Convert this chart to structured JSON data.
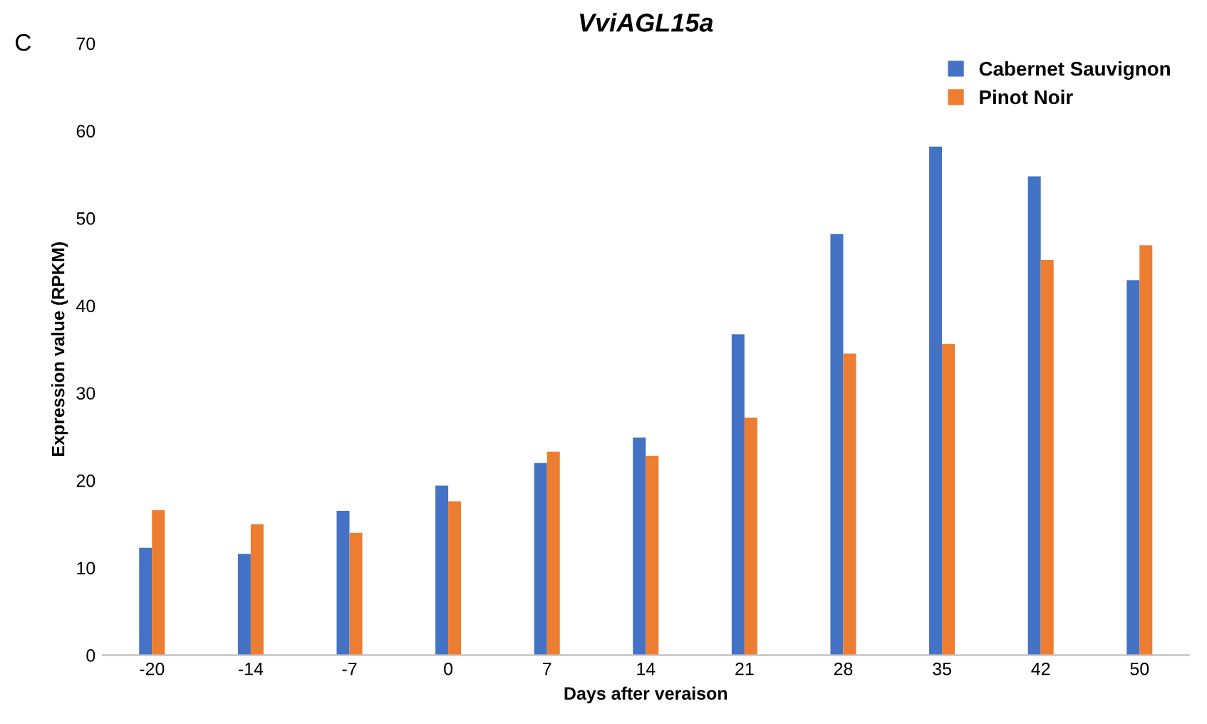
{
  "chart_data": {
    "type": "bar",
    "title": "VviAGL15a",
    "xlabel": "Days after veraison",
    "ylabel": "Expression value (RPKM)",
    "annotations": [
      "C"
    ],
    "categories": [
      "-20",
      "-14",
      "-7",
      "0",
      "7",
      "14",
      "21",
      "28",
      "35",
      "42",
      "50"
    ],
    "series": [
      {
        "name": "Cabernet Sauvignon",
        "color": "#4472c4",
        "values": [
          12.3,
          11.6,
          16.5,
          19.4,
          22.0,
          24.9,
          36.7,
          48.2,
          58.2,
          54.8,
          42.9
        ]
      },
      {
        "name": "Pinot Noir",
        "color": "#ed7d31",
        "values": [
          16.6,
          15.0,
          14.0,
          17.6,
          23.3,
          22.8,
          27.2,
          34.5,
          35.6,
          45.2,
          46.9
        ]
      }
    ],
    "ylim": [
      0,
      70
    ],
    "yticks": [
      0,
      10,
      20,
      30,
      40,
      50,
      60,
      70
    ],
    "grid": false,
    "legend": "top right"
  }
}
